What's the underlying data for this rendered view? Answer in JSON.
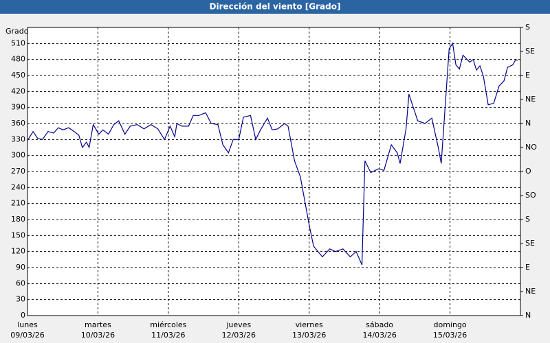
{
  "chart_data": {
    "type": "line",
    "title": "Dirección del viento [Grado]",
    "ylabel": "Grado",
    "x": [
      0,
      1.9,
      3.5,
      5.1,
      7,
      8.9,
      10.5,
      12.1,
      14,
      15.9,
      17.5,
      18.7,
      20.1,
      21,
      22.4,
      24.3,
      25.7,
      27.6,
      29.4,
      31.1,
      33.2,
      35,
      37.4,
      39.7,
      42.1,
      44.4,
      46.7,
      48.6,
      50.2,
      50.9,
      52.6,
      54.9,
      56.5,
      58.4,
      60.7,
      62.6,
      64.9,
      66.6,
      68.5,
      70.1,
      72,
      73.6,
      76,
      77.8,
      79.4,
      81.8,
      83.4,
      85.3,
      87.6,
      88.8,
      91,
      93,
      96,
      97.5,
      100.5,
      103,
      105,
      107.5,
      110,
      112,
      114,
      115,
      117,
      119.6,
      121.5,
      124,
      126,
      127,
      129,
      130,
      131.5,
      133,
      135.5,
      137.8,
      140,
      141,
      143.7,
      144.9,
      146,
      147.2,
      148.4,
      150.7,
      151.9,
      153,
      154.2,
      155.4,
      157,
      158.9,
      160.7,
      162.4,
      163.6,
      165.4,
      166.4,
      167
    ],
    "series": [
      {
        "name": "Dirección del viento",
        "color": "#00008b",
        "values": [
          328,
          345,
          332,
          330,
          345,
          342,
          352,
          348,
          352,
          345,
          338,
          315,
          325,
          315,
          358,
          340,
          348,
          340,
          358,
          365,
          340,
          355,
          358,
          350,
          358,
          350,
          330,
          355,
          335,
          360,
          355,
          355,
          375,
          375,
          380,
          360,
          358,
          320,
          305,
          330,
          330,
          372,
          375,
          330,
          348,
          370,
          348,
          350,
          360,
          355,
          290,
          260,
          170,
          130,
          110,
          125,
          120,
          125,
          110,
          120,
          95,
          290,
          268,
          275,
          272,
          320,
          305,
          285,
          350,
          415,
          390,
          365,
          360,
          370,
          315,
          285,
          500,
          510,
          470,
          462,
          488,
          475,
          480,
          460,
          468,
          448,
          395,
          398,
          430,
          440,
          465,
          470,
          480,
          478
        ]
      }
    ],
    "xlim": [
      0,
      168
    ],
    "xticks": [
      {
        "value": 0,
        "label": [
          "lunes",
          "09/03/26"
        ]
      },
      {
        "value": 24,
        "label": [
          "martes",
          "10/03/26"
        ]
      },
      {
        "value": 48,
        "label": [
          "miércoles",
          "11/03/26"
        ]
      },
      {
        "value": 72,
        "label": [
          "jueves",
          "12/03/26"
        ]
      },
      {
        "value": 96,
        "label": [
          "viernes",
          "13/03/26"
        ]
      },
      {
        "value": 120,
        "label": [
          "sábado",
          "14/03/26"
        ]
      },
      {
        "value": 144,
        "label": [
          "domingo",
          "15/03/26"
        ]
      }
    ],
    "ylim": [
      0,
      540
    ],
    "yticks": [
      0,
      30,
      60,
      90,
      120,
      150,
      180,
      210,
      240,
      270,
      300,
      330,
      360,
      390,
      420,
      450,
      480,
      510
    ],
    "y2lim": [
      0,
      540
    ],
    "y2ticks": [
      {
        "value": 0,
        "label": "N"
      },
      {
        "value": 45,
        "label": "NE"
      },
      {
        "value": 90,
        "label": "E"
      },
      {
        "value": 135,
        "label": "SE"
      },
      {
        "value": 180,
        "label": "S"
      },
      {
        "value": 225,
        "label": "SO"
      },
      {
        "value": 270,
        "label": "O"
      },
      {
        "value": 315,
        "label": "NO"
      },
      {
        "value": 360,
        "label": "N"
      },
      {
        "value": 405,
        "label": "NE"
      },
      {
        "value": 450,
        "label": "E"
      },
      {
        "value": 495,
        "label": "SE"
      },
      {
        "value": 540,
        "label": "S"
      }
    ],
    "grid": true
  }
}
